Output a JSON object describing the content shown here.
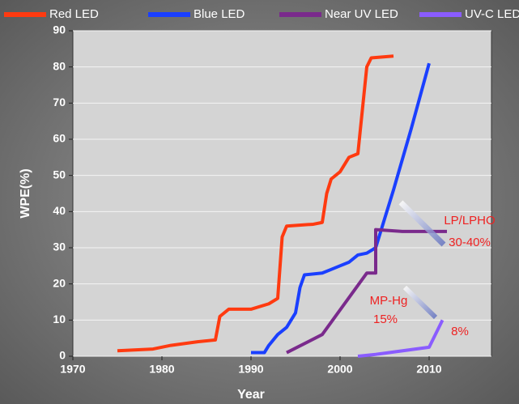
{
  "chart_data": {
    "type": "line",
    "xlabel": "Year",
    "ylabel": "WPE(%)",
    "xlim": [
      1970,
      2017
    ],
    "ylim": [
      0,
      90
    ],
    "xticks": [
      1970,
      1980,
      1990,
      2000,
      2010
    ],
    "yticks": [
      0,
      10,
      20,
      30,
      40,
      50,
      60,
      70,
      80,
      90
    ],
    "grid": true,
    "series": [
      {
        "name": "Red LED",
        "color": "#ff3a10",
        "x": [
          1975,
          1979,
          1981,
          1984,
          1986,
          1986.5,
          1987.5,
          1990,
          1992,
          1993,
          1993.5,
          1994,
          1997,
          1998,
          1998.5,
          1999,
          2000,
          2001,
          2002,
          2003,
          2003.5,
          2006
        ],
        "values": [
          1.5,
          2,
          3,
          4,
          4.5,
          11,
          13,
          13,
          14.5,
          16,
          33,
          36,
          36.5,
          37,
          45,
          49,
          51,
          55,
          56,
          80,
          82.5,
          83
        ]
      },
      {
        "name": "Blue LED",
        "color": "#1a3fff",
        "x": [
          1990,
          1991.5,
          1992,
          1993,
          1994,
          1995,
          1995.5,
          1996,
          1998,
          1999,
          2000,
          2001,
          2002,
          2003,
          2004,
          2005,
          2006,
          2008,
          2010
        ],
        "values": [
          1,
          1,
          3,
          6,
          8,
          12,
          19,
          22.5,
          23,
          24,
          25,
          26,
          28,
          28.5,
          30,
          38,
          46,
          63,
          81
        ]
      },
      {
        "name": "Near UV LED",
        "color": "#7a2a8c",
        "x": [
          1994,
          1998,
          2003,
          2004,
          2004,
          2007,
          2012
        ],
        "values": [
          1,
          6,
          23,
          23,
          35,
          34.5,
          34.5
        ]
      },
      {
        "name": "UV-C LED",
        "color": "#8a5cff",
        "x": [
          2002,
          2004,
          2010,
          2011.5
        ],
        "values": [
          0,
          0.5,
          2.5,
          10
        ]
      }
    ],
    "annotations": [
      "LP/LPHO",
      "30-40%",
      "MP-Hg",
      "15%",
      "8%"
    ]
  }
}
